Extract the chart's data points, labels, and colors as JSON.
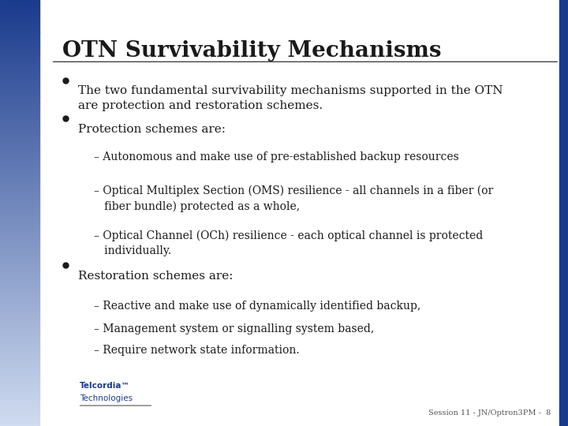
{
  "title": "OTN Survivability Mechanisms",
  "title_fontsize": 20,
  "title_color": "#1a1a1a",
  "background_color": "#ffffff",
  "left_bar_color_top": "#1a3a8c",
  "left_bar_color_bottom": "#c8d4e8",
  "left_bar_width": 0.07,
  "border_color": "#1a3a8c",
  "footer_text": "Session 11 - JN/Optron3PM -  8",
  "footer_fontsize": 7,
  "content": [
    {
      "level": 0,
      "text": "The two fundamental survivability mechanisms supported in the OTN\nare protection and restoration schemes."
    },
    {
      "level": 0,
      "text": "Protection schemes are:"
    },
    {
      "level": 1,
      "text": "– Autonomous and make use of pre-established backup resources"
    },
    {
      "level": 1,
      "text": "– Optical Multiplex Section (OMS) resilience - all channels in a fiber (or\n   fiber bundle) protected as a whole,"
    },
    {
      "level": 1,
      "text": "– Optical Channel (OCh) resilience - each optical channel is protected\n   individually."
    },
    {
      "level": 0,
      "text": "Restoration schemes are:"
    },
    {
      "level": 1,
      "text": "– Reactive and make use of dynamically identified backup,"
    },
    {
      "level": 1,
      "text": "– Management system or signalling system based,"
    },
    {
      "level": 1,
      "text": "– Require network state information."
    }
  ]
}
